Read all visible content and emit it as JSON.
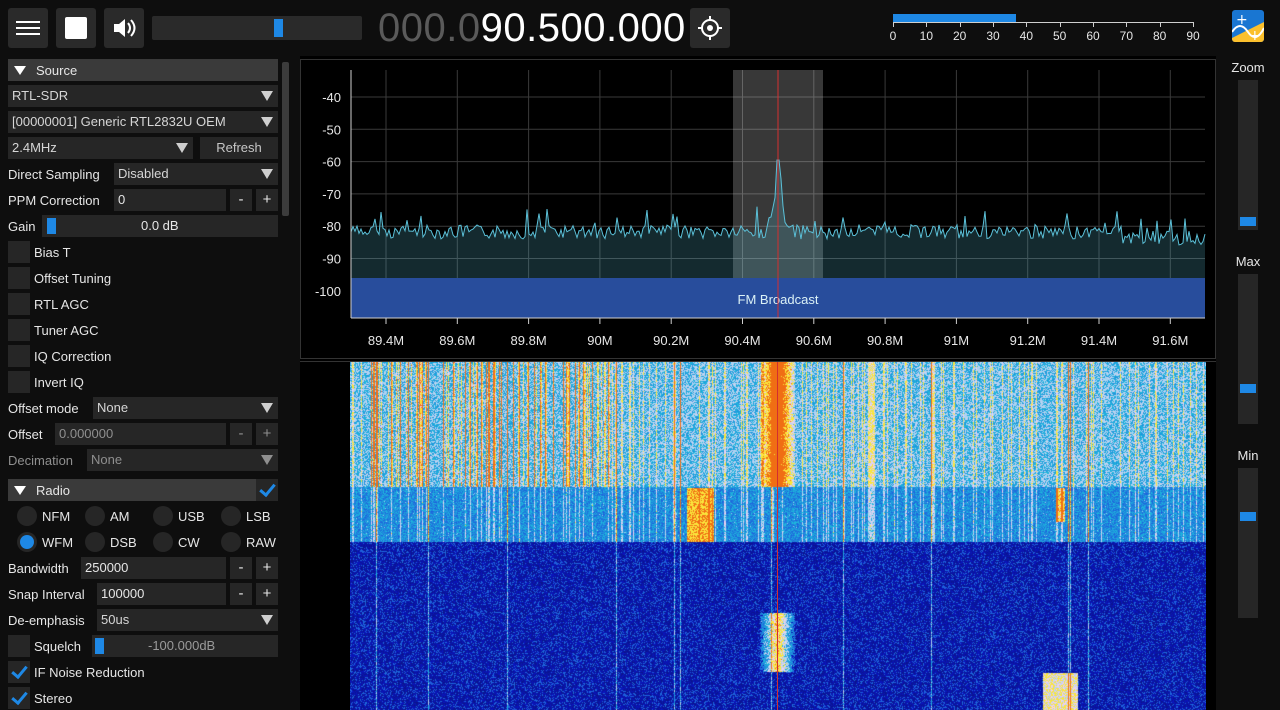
{
  "topbar": {
    "menu_icon": "hamburger-menu-icon",
    "stop_icon": "stop-icon",
    "volume_icon": "speaker-volume-icon",
    "volume_level": 0.6,
    "frequency_dim": "000.0",
    "frequency_bright": "90.500.000",
    "center_icon": "crosshair-center-icon",
    "snr_level": 37,
    "snr_scale": [
      "0",
      "10",
      "20",
      "30",
      "40",
      "50",
      "60",
      "70",
      "80",
      "90"
    ],
    "logo_icon": "app-logo-icon"
  },
  "source": {
    "title": "Source",
    "device_type": "RTL-SDR",
    "device": "[00000001] Generic RTL2832U OEM",
    "samplerate": "2.4MHz",
    "refresh_label": "Refresh",
    "direct_sampling_label": "Direct Sampling",
    "direct_sampling_value": "Disabled",
    "ppm_label": "PPM Correction",
    "ppm_value": "0",
    "minus": "-",
    "plus": "+",
    "gain_label": "Gain",
    "gain_value": "0.0 dB",
    "checks": [
      {
        "label": "Bias T",
        "checked": false
      },
      {
        "label": "Offset Tuning",
        "checked": false
      },
      {
        "label": "RTL AGC",
        "checked": false
      },
      {
        "label": "Tuner AGC",
        "checked": false
      },
      {
        "label": "IQ Correction",
        "checked": false
      },
      {
        "label": "Invert IQ",
        "checked": false
      }
    ],
    "offset_mode_label": "Offset mode",
    "offset_mode_value": "None",
    "offset_label": "Offset",
    "offset_value": "0.000000",
    "decimation_label": "Decimation",
    "decimation_value": "None"
  },
  "radio": {
    "title": "Radio",
    "modes_row1": [
      "NFM",
      "AM",
      "USB",
      "LSB"
    ],
    "modes_row2": [
      "WFM",
      "DSB",
      "CW",
      "RAW"
    ],
    "selected_mode": "WFM",
    "bandwidth_label": "Bandwidth",
    "bandwidth_value": "250000",
    "snap_label": "Snap Interval",
    "snap_value": "100000",
    "deemph_label": "De-emphasis",
    "deemph_value": "50us",
    "squelch_label": "Squelch",
    "squelch_value": "-100.000dB",
    "if_nr_label": "IF Noise Reduction",
    "stereo_label": "Stereo"
  },
  "spectrum": {
    "y_ticks": [
      "-40",
      "-50",
      "-60",
      "-70",
      "-80",
      "-90",
      "-100"
    ],
    "x_ticks": [
      "89.4M",
      "89.6M",
      "89.8M",
      "90M",
      "90.2M",
      "90.4M",
      "90.6M",
      "90.8M",
      "91M",
      "91.2M",
      "91.4M",
      "91.6M"
    ],
    "band_label": "FM Broadcast",
    "accent": "#1e88e5",
    "trace_color": "#5bc0d8",
    "band_color": "#1a2e8c",
    "vfo_color": "#d32f2f"
  },
  "right": {
    "zoom_label": "Zoom",
    "max_label": "Max",
    "min_label": "Min"
  }
}
